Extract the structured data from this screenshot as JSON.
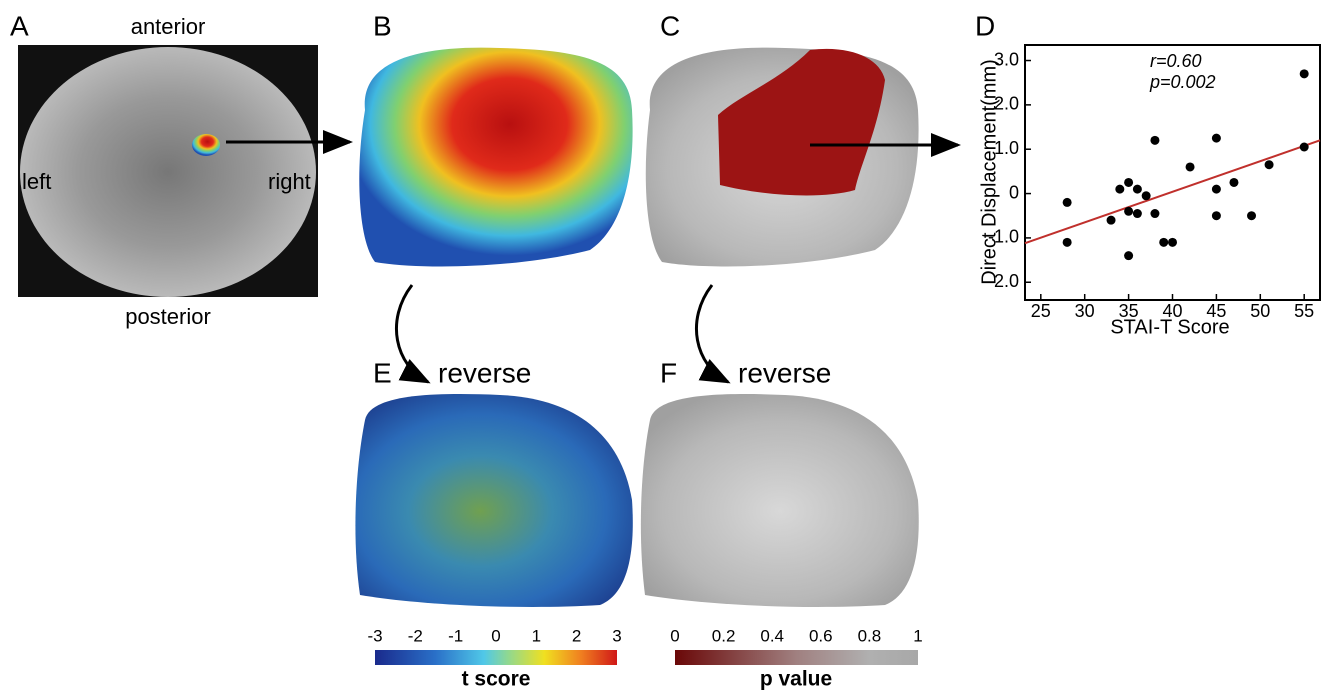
{
  "panel_labels": [
    "A",
    "B",
    "C",
    "D",
    "E",
    "F"
  ],
  "brain": {
    "anterior": "anterior",
    "posterior": "posterior",
    "left": "left",
    "right": "right"
  },
  "reverse_labels": [
    "reverse",
    "reverse"
  ],
  "colorbars": [
    {
      "title": "t score",
      "ticks": [
        -3,
        -2,
        -1,
        0,
        1,
        2,
        3
      ]
    },
    {
      "title": "p value",
      "ticks": [
        0,
        0.2,
        0.4,
        0.6,
        0.8,
        1
      ]
    }
  ],
  "chart_data": {
    "type": "scatter",
    "x_label": "STAI-T Score",
    "y_label": "Direct Displacement(mm)",
    "annotations": [
      "r=0.60",
      "p=0.002"
    ],
    "xlim": [
      23.2,
      56.8
    ],
    "xticks": [
      25,
      30,
      35,
      40,
      45,
      50,
      55
    ],
    "ylim": [
      -2.4,
      3.35
    ],
    "yticks": [
      {
        "value": 3,
        "label": "3.0"
      },
      {
        "value": 2,
        "label": "2.0"
      },
      {
        "value": 1,
        "label": "1.0"
      },
      0,
      {
        "value": -1,
        "label": "-1.0"
      },
      {
        "value": -2,
        "label": "-2.0"
      }
    ],
    "color": "#000000",
    "x": [
      28,
      28,
      33,
      34,
      35,
      35,
      35,
      36,
      36,
      37,
      38,
      38,
      39,
      40,
      42,
      45,
      45,
      45,
      47,
      49,
      51,
      55,
      55
    ],
    "y": [
      -0.2,
      -1.1,
      -0.6,
      0.1,
      0.25,
      -0.4,
      -1.4,
      0.1,
      -0.45,
      -0.05,
      1.2,
      -0.45,
      -1.1,
      -1.1,
      0.6,
      1.25,
      0.1,
      -0.5,
      0.25,
      -0.5,
      0.65,
      2.7,
      1.05
    ],
    "fit": {
      "color": "#c0302c",
      "x": [
        23.2,
        56.8
      ],
      "y": [
        -1.12,
        1.2
      ]
    }
  }
}
